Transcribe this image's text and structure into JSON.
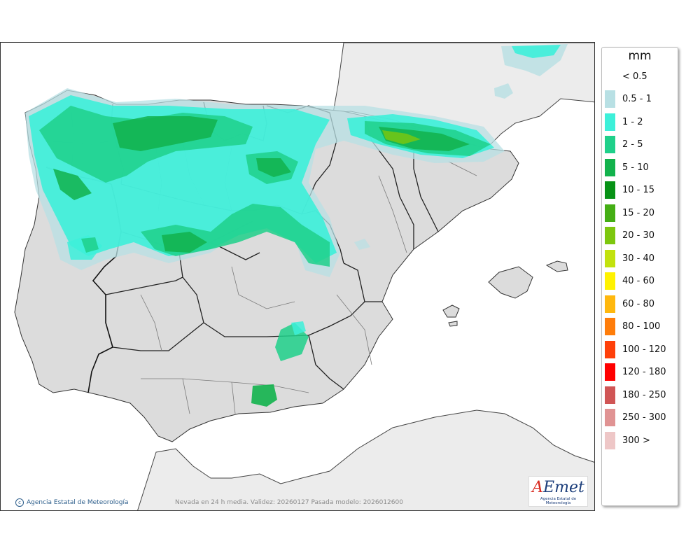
{
  "map": {
    "credit": "Agencia Estatal de Meteorología",
    "caption": "Nevada en 24 h media. Validez: 20260127 Pasada modelo: 2026012600",
    "colors": {
      "sea": "#ffffff",
      "land": "#dcdcdc",
      "foreign_land": "#ececec",
      "border": "#222222"
    }
  },
  "logo": {
    "mark": "AEmet",
    "sub": "Agencia Estatal de Meteorología"
  },
  "legend": {
    "unit": "mm",
    "entries": [
      {
        "label": "< 0.5",
        "color": ""
      },
      {
        "label": "0.5 - 1",
        "color": "#b8e0e4"
      },
      {
        "label": "1 - 2",
        "color": "#3df0d9"
      },
      {
        "label": "2 - 5",
        "color": "#1fd08a"
      },
      {
        "label": "5 - 10",
        "color": "#12b24c"
      },
      {
        "label": "10 - 15",
        "color": "#079216"
      },
      {
        "label": "15 - 20",
        "color": "#44ae14"
      },
      {
        "label": "20 - 30",
        "color": "#7dc70e"
      },
      {
        "label": "30 - 40",
        "color": "#c2e20e"
      },
      {
        "label": "40 - 60",
        "color": "#fff200"
      },
      {
        "label": "60 - 80",
        "color": "#ffb80e"
      },
      {
        "label": "80 - 100",
        "color": "#ff7d0a"
      },
      {
        "label": "100 - 120",
        "color": "#ff400a"
      },
      {
        "label": "120 - 180",
        "color": "#ff0000"
      },
      {
        "label": "180 - 250",
        "color": "#d05555"
      },
      {
        "label": "250 - 300",
        "color": "#e09393"
      },
      {
        "label": "300 >",
        "color": "#eec7c7"
      }
    ]
  }
}
